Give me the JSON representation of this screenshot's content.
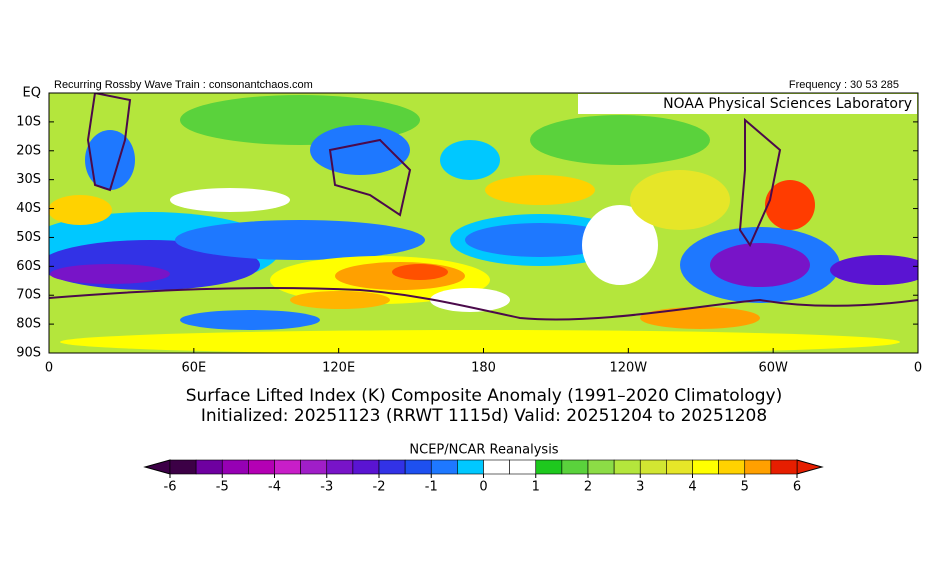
{
  "header": {
    "left": "Recurring Rossby Wave Train : consonantchaos.com",
    "right": "Frequency : 30 53 285",
    "lab": "NOAA Physical Sciences Laboratory"
  },
  "map": {
    "lat_labels": [
      "EQ",
      "10S",
      "20S",
      "30S",
      "40S",
      "50S",
      "60S",
      "70S",
      "80S",
      "90S"
    ],
    "lon_labels": [
      "0",
      "60E",
      "120E",
      "180",
      "120W",
      "60W",
      "0"
    ]
  },
  "title": {
    "line1": "Surface Lifted Index (K) Composite Anomaly (1991–2020 Climatology)",
    "line2": "Initialized: 20251123 (RRWT 1115d) Valid: 20251204 to 20251208"
  },
  "colorbar": {
    "label": "NCEP/NCAR Reanalysis",
    "ticks": [
      -6,
      -5,
      -4,
      -3,
      -2,
      -1,
      0,
      1,
      2,
      3,
      4,
      5,
      6
    ],
    "colors": [
      "#3c0046",
      "#6e00a0",
      "#9600b4",
      "#b400b4",
      "#c81ec8",
      "#a01ec8",
      "#7814c8",
      "#5a14d2",
      "#3232e6",
      "#1e50f0",
      "#1e78ff",
      "#00c8ff",
      "#ffffff",
      "#ffffff",
      "#1ec81e",
      "#5ad23c",
      "#8cdc46",
      "#b4e63c",
      "#d2e632",
      "#e6e628",
      "#ffff00",
      "#ffd200",
      "#ffa000",
      "#e61e00"
    ]
  }
}
